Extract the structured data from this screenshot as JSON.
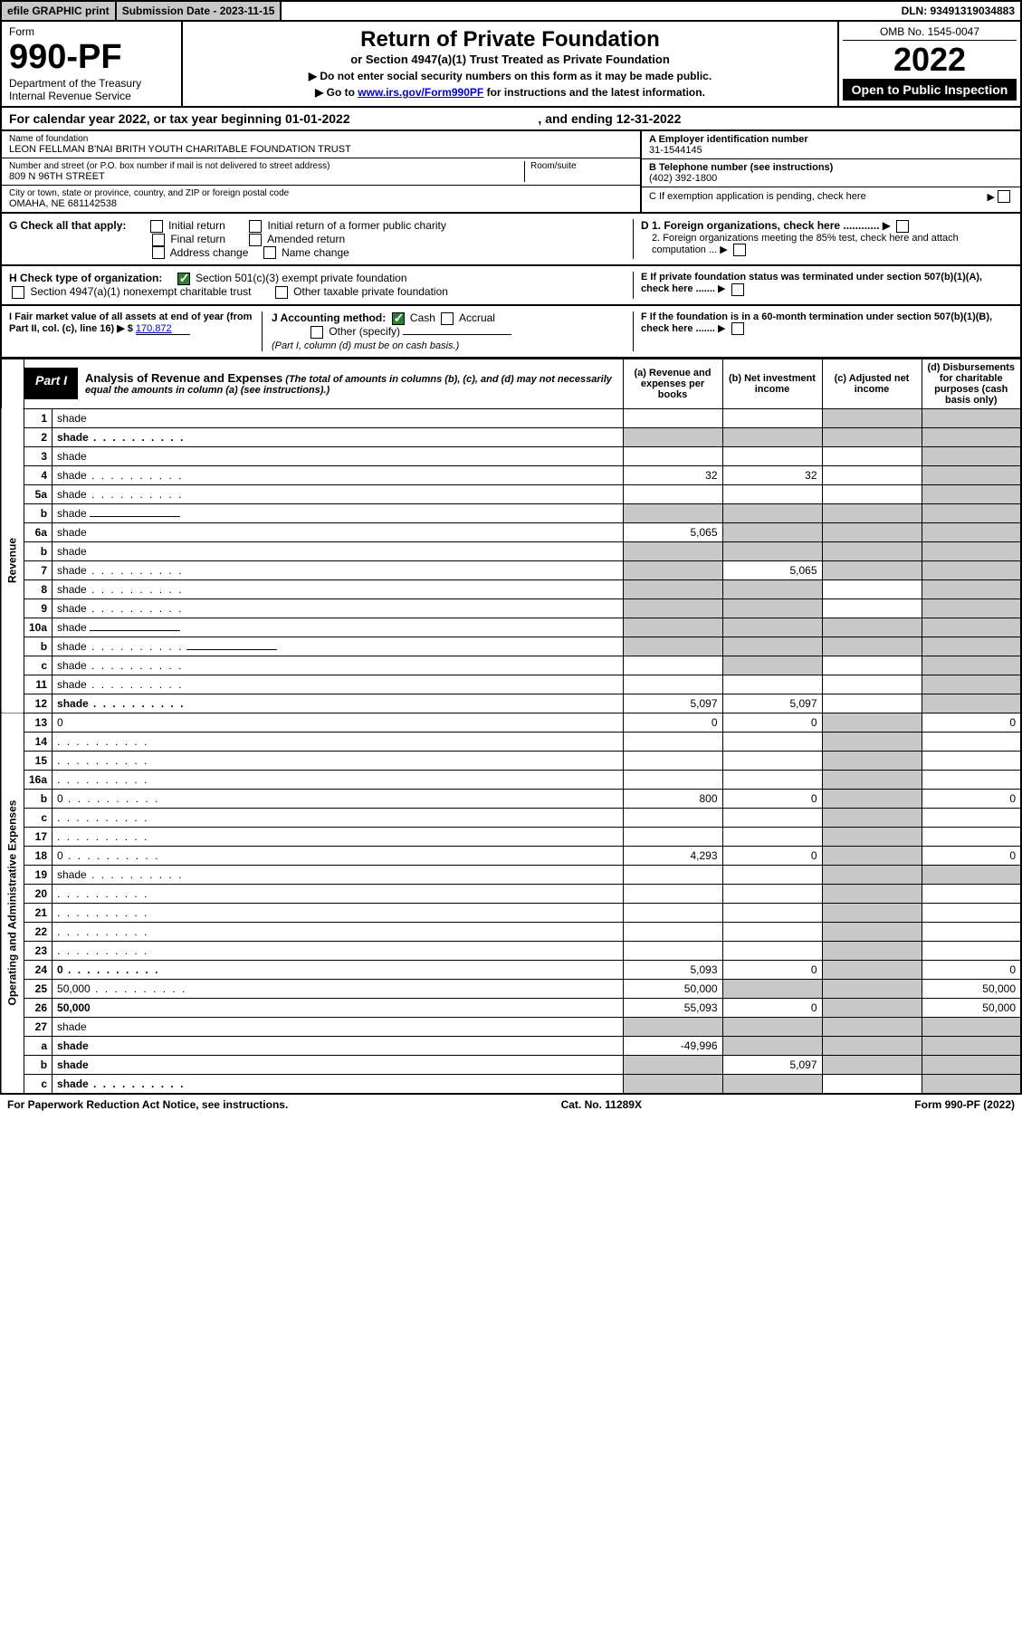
{
  "topbar": {
    "efile": "efile GRAPHIC print",
    "subdate_label": "Submission Date - 2023-11-15",
    "dln": "DLN: 93491319034883"
  },
  "header": {
    "form_label": "Form",
    "form_no": "990-PF",
    "dept": "Department of the Treasury",
    "irs": "Internal Revenue Service",
    "title": "Return of Private Foundation",
    "subtitle": "or Section 4947(a)(1) Trust Treated as Private Foundation",
    "note1": "▶ Do not enter social security numbers on this form as it may be made public.",
    "note2_pre": "▶ Go to ",
    "note2_link": "www.irs.gov/Form990PF",
    "note2_post": " for instructions and the latest information.",
    "omb": "OMB No. 1545-0047",
    "year": "2022",
    "open": "Open to Public Inspection"
  },
  "calrow": {
    "pre": "For calendar year 2022, or tax year beginning ",
    "begin": "01-01-2022",
    "mid": " , and ending ",
    "end": "12-31-2022"
  },
  "info": {
    "name_lbl": "Name of foundation",
    "name": "LEON FELLMAN B'NAI BRITH YOUTH CHARITABLE FOUNDATION TRUST",
    "addr_lbl": "Number and street (or P.O. box number if mail is not delivered to street address)",
    "addr": "809 N 96TH STREET",
    "room_lbl": "Room/suite",
    "city_lbl": "City or town, state or province, country, and ZIP or foreign postal code",
    "city": "OMAHA, NE  681142538",
    "a_lbl": "A Employer identification number",
    "a_val": "31-1544145",
    "b_lbl": "B Telephone number (see instructions)",
    "b_val": "(402) 392-1800",
    "c_lbl": "C If exemption application is pending, check here"
  },
  "g": {
    "label": "G Check all that apply:",
    "opts": [
      "Initial return",
      "Initial return of a former public charity",
      "Final return",
      "Amended return",
      "Address change",
      "Name change"
    ]
  },
  "h": {
    "label": "H Check type of organization:",
    "o1": "Section 501(c)(3) exempt private foundation",
    "o2": "Section 4947(a)(1) nonexempt charitable trust",
    "o3": "Other taxable private foundation"
  },
  "i": {
    "label": "I Fair market value of all assets at end of year (from Part II, col. (c), line 16) ▶ $",
    "val": "170,872"
  },
  "j": {
    "label": "J Accounting method:",
    "cash": "Cash",
    "accrual": "Accrual",
    "other": "Other (specify)",
    "note": "(Part I, column (d) must be on cash basis.)"
  },
  "d": {
    "d1": "D 1. Foreign organizations, check here ............",
    "d2": "2. Foreign organizations meeting the 85% test, check here and attach computation ..."
  },
  "e": {
    "label": "E  If private foundation status was terminated under section 507(b)(1)(A), check here ......."
  },
  "f": {
    "label": "F  If the foundation is in a 60-month termination under section 507(b)(1)(B), check here ......."
  },
  "part1": {
    "tag": "Part I",
    "title": "Analysis of Revenue and Expenses",
    "note": " (The total of amounts in columns (b), (c), and (d) may not necessarily equal the amounts in column (a) (see instructions).)",
    "cols": {
      "a": "(a) Revenue and expenses per books",
      "b": "(b) Net investment income",
      "c": "(c) Adjusted net income",
      "d": "(d) Disbursements for charitable purposes (cash basis only)"
    }
  },
  "sections": {
    "revenue": "Revenue",
    "opex": "Operating and Administrative Expenses"
  },
  "rows": [
    {
      "n": "1",
      "d": "shade",
      "a": "",
      "b": "",
      "c": "shade"
    },
    {
      "n": "2",
      "d": "shade",
      "a": "shade",
      "b": "shade",
      "c": "shade",
      "bold": true,
      "dots": true
    },
    {
      "n": "3",
      "d": "shade",
      "a": "",
      "b": "",
      "c": ""
    },
    {
      "n": "4",
      "d": "shade",
      "a": "32",
      "b": "32",
      "c": "",
      "dots": true
    },
    {
      "n": "5a",
      "d": "shade",
      "a": "",
      "b": "",
      "c": "",
      "dots": true
    },
    {
      "n": "b",
      "d": "shade",
      "a": "shade",
      "b": "shade",
      "c": "shade",
      "inline": true
    },
    {
      "n": "6a",
      "d": "shade",
      "a": "5,065",
      "b": "shade",
      "c": "shade"
    },
    {
      "n": "b",
      "d": "shade",
      "a": "shade",
      "b": "shade",
      "c": "shade"
    },
    {
      "n": "7",
      "d": "shade",
      "a": "shade",
      "b": "5,065",
      "c": "shade",
      "dots": true
    },
    {
      "n": "8",
      "d": "shade",
      "a": "shade",
      "b": "shade",
      "c": "",
      "dots": true
    },
    {
      "n": "9",
      "d": "shade",
      "a": "shade",
      "b": "shade",
      "c": "",
      "dots": true
    },
    {
      "n": "10a",
      "d": "shade",
      "a": "shade",
      "b": "shade",
      "c": "shade",
      "inline": true
    },
    {
      "n": "b",
      "d": "shade",
      "a": "shade",
      "b": "shade",
      "c": "shade",
      "inline": true,
      "dots": true
    },
    {
      "n": "c",
      "d": "shade",
      "a": "",
      "b": "shade",
      "c": "",
      "dots": true
    },
    {
      "n": "11",
      "d": "shade",
      "a": "",
      "b": "",
      "c": "",
      "dots": true
    },
    {
      "n": "12",
      "d": "shade",
      "a": "5,097",
      "b": "5,097",
      "c": "",
      "bold": true,
      "dots": true
    }
  ],
  "exprows": [
    {
      "n": "13",
      "d": "0",
      "a": "0",
      "b": "0",
      "c": "shade"
    },
    {
      "n": "14",
      "d": "",
      "a": "",
      "b": "",
      "c": "shade",
      "dots": true
    },
    {
      "n": "15",
      "d": "",
      "a": "",
      "b": "",
      "c": "shade",
      "dots": true
    },
    {
      "n": "16a",
      "d": "",
      "a": "",
      "b": "",
      "c": "shade",
      "dots": true
    },
    {
      "n": "b",
      "d": "0",
      "a": "800",
      "b": "0",
      "c": "shade",
      "dots": true
    },
    {
      "n": "c",
      "d": "",
      "a": "",
      "b": "",
      "c": "shade",
      "dots": true
    },
    {
      "n": "17",
      "d": "",
      "a": "",
      "b": "",
      "c": "shade",
      "dots": true
    },
    {
      "n": "18",
      "d": "0",
      "a": "4,293",
      "b": "0",
      "c": "shade",
      "dots": true
    },
    {
      "n": "19",
      "d": "shade",
      "a": "",
      "b": "",
      "c": "shade",
      "dots": true
    },
    {
      "n": "20",
      "d": "",
      "a": "",
      "b": "",
      "c": "shade",
      "dots": true
    },
    {
      "n": "21",
      "d": "",
      "a": "",
      "b": "",
      "c": "shade",
      "dots": true
    },
    {
      "n": "22",
      "d": "",
      "a": "",
      "b": "",
      "c": "shade",
      "dots": true
    },
    {
      "n": "23",
      "d": "",
      "a": "",
      "b": "",
      "c": "shade",
      "dots": true
    },
    {
      "n": "24",
      "d": "0",
      "a": "5,093",
      "b": "0",
      "c": "shade",
      "bold": true,
      "dots": true
    },
    {
      "n": "25",
      "d": "50,000",
      "a": "50,000",
      "b": "shade",
      "c": "shade",
      "dots": true
    },
    {
      "n": "26",
      "d": "50,000",
      "a": "55,093",
      "b": "0",
      "c": "shade",
      "bold": true
    },
    {
      "n": "27",
      "d": "shade",
      "a": "shade",
      "b": "shade",
      "c": "shade"
    },
    {
      "n": "a",
      "d": "shade",
      "a": "-49,996",
      "b": "shade",
      "c": "shade",
      "bold": true
    },
    {
      "n": "b",
      "d": "shade",
      "a": "shade",
      "b": "5,097",
      "c": "shade",
      "bold": true
    },
    {
      "n": "c",
      "d": "shade",
      "a": "shade",
      "b": "shade",
      "c": "",
      "bold": true,
      "dots": true
    }
  ],
  "footer": {
    "left": "For Paperwork Reduction Act Notice, see instructions.",
    "mid": "Cat. No. 11289X",
    "right": "Form 990-PF (2022)"
  }
}
